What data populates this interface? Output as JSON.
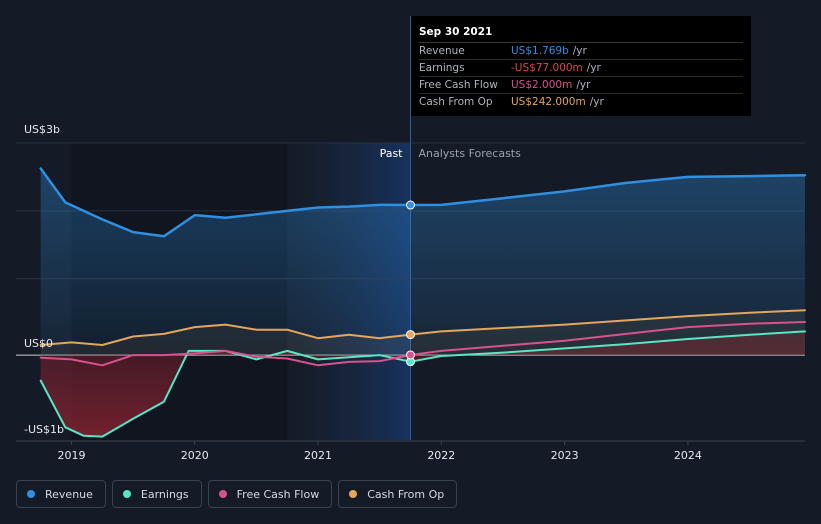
{
  "chart_data": {
    "type": "area",
    "y_unit_labels": [
      "US$3b",
      "US$0",
      "-US$1b"
    ],
    "x_ticks": [
      2019,
      2020,
      2021,
      2022,
      2023,
      2024
    ],
    "xlim": [
      2018.55,
      2024.95
    ],
    "ylim": [
      -1.0,
      2.5
    ],
    "section_labels": {
      "past": "Past",
      "forecast": "Analysts Forecasts"
    },
    "divider_x": 2021.75,
    "series": [
      {
        "name": "Revenue",
        "color": "#2f8fe0",
        "points": [
          [
            2018.75,
            2.2
          ],
          [
            2018.95,
            1.8
          ],
          [
            2019.25,
            1.6
          ],
          [
            2019.5,
            1.45
          ],
          [
            2019.75,
            1.4
          ],
          [
            2020.0,
            1.65
          ],
          [
            2020.25,
            1.62
          ],
          [
            2020.5,
            1.66
          ],
          [
            2020.75,
            1.7
          ],
          [
            2021.0,
            1.74
          ],
          [
            2021.25,
            1.75
          ],
          [
            2021.5,
            1.77
          ],
          [
            2021.75,
            1.769
          ],
          [
            2022.0,
            1.77
          ],
          [
            2022.5,
            1.85
          ],
          [
            2023.0,
            1.93
          ],
          [
            2023.5,
            2.03
          ],
          [
            2024.0,
            2.1
          ],
          [
            2024.5,
            2.11
          ],
          [
            2024.95,
            2.12
          ]
        ]
      },
      {
        "name": "Earnings",
        "color": "#58e6c4",
        "points": [
          [
            2018.75,
            -0.3
          ],
          [
            2018.95,
            -0.85
          ],
          [
            2019.1,
            -0.95
          ],
          [
            2019.25,
            -0.96
          ],
          [
            2019.5,
            -0.75
          ],
          [
            2019.75,
            -0.55
          ],
          [
            2019.95,
            0.05
          ],
          [
            2020.25,
            0.05
          ],
          [
            2020.5,
            -0.05
          ],
          [
            2020.75,
            0.05
          ],
          [
            2021.0,
            -0.05
          ],
          [
            2021.5,
            0.0
          ],
          [
            2021.75,
            -0.077
          ],
          [
            2022.0,
            -0.01
          ],
          [
            2022.5,
            0.03
          ],
          [
            2023.0,
            0.08
          ],
          [
            2023.5,
            0.13
          ],
          [
            2024.0,
            0.19
          ],
          [
            2024.5,
            0.24
          ],
          [
            2024.95,
            0.28
          ]
        ]
      },
      {
        "name": "Free Cash Flow",
        "color": "#d6538e",
        "points": [
          [
            2018.75,
            -0.03
          ],
          [
            2019.0,
            -0.05
          ],
          [
            2019.25,
            -0.12
          ],
          [
            2019.5,
            0.0
          ],
          [
            2019.75,
            0.0
          ],
          [
            2020.0,
            0.02
          ],
          [
            2020.25,
            0.05
          ],
          [
            2020.5,
            -0.02
          ],
          [
            2020.75,
            -0.04
          ],
          [
            2021.0,
            -0.12
          ],
          [
            2021.25,
            -0.08
          ],
          [
            2021.5,
            -0.07
          ],
          [
            2021.75,
            0.002
          ],
          [
            2022.0,
            0.05
          ],
          [
            2022.5,
            0.11
          ],
          [
            2023.0,
            0.17
          ],
          [
            2023.5,
            0.25
          ],
          [
            2024.0,
            0.33
          ],
          [
            2024.5,
            0.37
          ],
          [
            2024.95,
            0.39
          ]
        ]
      },
      {
        "name": "Cash From Op",
        "color": "#e3a65c",
        "points": [
          [
            2018.75,
            0.12
          ],
          [
            2019.0,
            0.15
          ],
          [
            2019.25,
            0.12
          ],
          [
            2019.5,
            0.22
          ],
          [
            2019.75,
            0.25
          ],
          [
            2020.0,
            0.33
          ],
          [
            2020.25,
            0.36
          ],
          [
            2020.5,
            0.3
          ],
          [
            2020.75,
            0.3
          ],
          [
            2021.0,
            0.2
          ],
          [
            2021.25,
            0.24
          ],
          [
            2021.5,
            0.2
          ],
          [
            2021.75,
            0.242
          ],
          [
            2022.0,
            0.28
          ],
          [
            2022.5,
            0.32
          ],
          [
            2023.0,
            0.36
          ],
          [
            2023.5,
            0.41
          ],
          [
            2024.0,
            0.46
          ],
          [
            2024.5,
            0.5
          ],
          [
            2024.95,
            0.53
          ]
        ]
      }
    ]
  },
  "tooltip": {
    "date": "Sep 30 2021",
    "rows": [
      {
        "label": "Revenue",
        "value": "US$1.769b",
        "unit": "/yr",
        "color": "#2f8fe0"
      },
      {
        "label": "Earnings",
        "value": "-US$77.000m",
        "unit": "/yr",
        "color": "#e04545"
      },
      {
        "label": "Free Cash Flow",
        "value": "US$2.000m",
        "unit": "/yr",
        "color": "#d6538e"
      },
      {
        "label": "Cash From Op",
        "value": "US$242.000m",
        "unit": "/yr",
        "color": "#e3a65c"
      }
    ]
  },
  "legend": [
    {
      "label": "Revenue",
      "color": "#2f8fe0"
    },
    {
      "label": "Earnings",
      "color": "#58e6c4"
    },
    {
      "label": "Free Cash Flow",
      "color": "#d6538e"
    },
    {
      "label": "Cash From Op",
      "color": "#e3a65c"
    }
  ]
}
